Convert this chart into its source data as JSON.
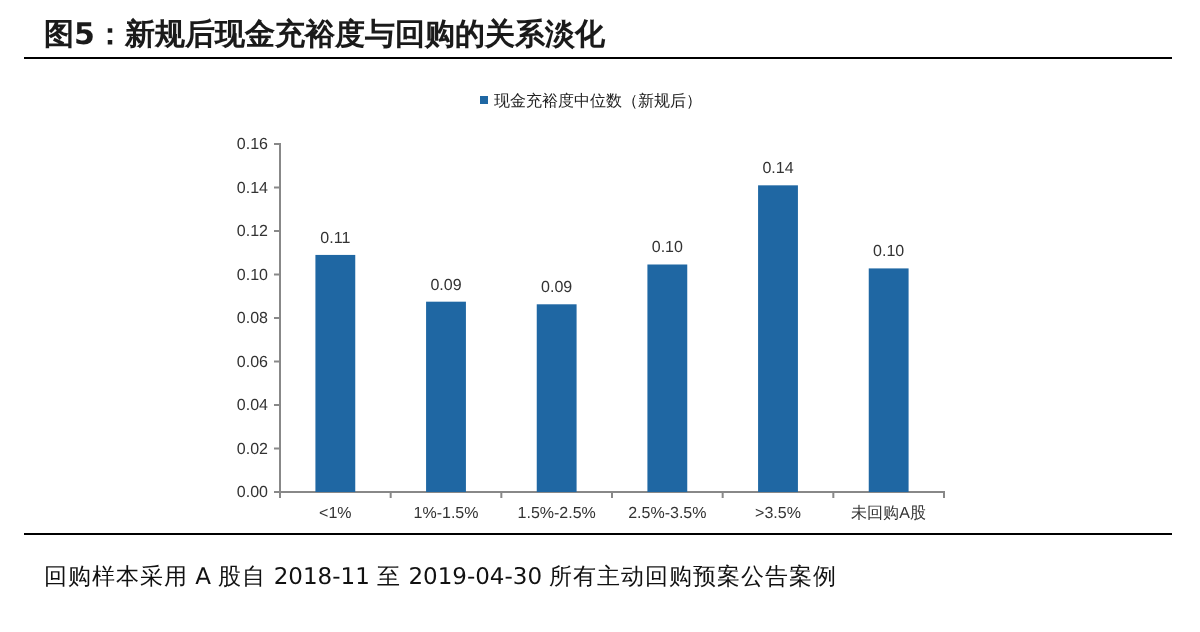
{
  "chart_data": {
    "type": "bar",
    "title": "图5：新规后现金充裕度与回购的关系淡化",
    "categories": [
      "<1%",
      "1%-1.5%",
      "1.5%-2.5%",
      "2.5%-3.5%",
      ">3.5%",
      "未回购A股"
    ],
    "series": [
      {
        "name": "现金充裕度中位数（新规后）",
        "color": "#1f67a3",
        "values": [
          0.109,
          0.0875,
          0.0863,
          0.1046,
          0.141,
          0.1028
        ],
        "value_labels": [
          "0.11",
          "0.09",
          "0.09",
          "0.10",
          "0.14",
          "0.10"
        ]
      }
    ],
    "ylim": [
      0,
      0.16
    ],
    "yticks": [
      "0.00",
      "0.02",
      "0.04",
      "0.06",
      "0.08",
      "0.10",
      "0.12",
      "0.14",
      "0.16"
    ],
    "grid": false,
    "legend": "top",
    "annotations": [
      "回购样本采用 A 股自 2018-11 至 2019-04-30 所有主动回购预案公告案例"
    ]
  }
}
